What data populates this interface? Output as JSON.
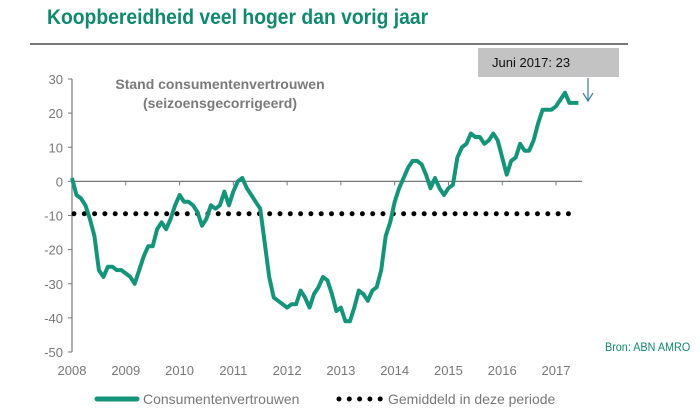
{
  "title": "Koopbereidheid veel hoger dan vorig jaar",
  "source": "Bron: ABN AMRO",
  "colors": {
    "accent": "#0f8a6f",
    "series": "#14957a",
    "average": "#000000",
    "callout": "#c3c3c3"
  },
  "chart_data": {
    "type": "line",
    "subtitle": "Stand consumentenvertrouwen (seizoensgecorrigeerd)",
    "subtitle_lines": [
      "Stand consumentenvertrouwen",
      "(seizoensgecorrigeerd)"
    ],
    "annotation": "Juni 2017: 23",
    "xlim": [
      2008,
      2017.6
    ],
    "ylim": [
      -50,
      30
    ],
    "x_ticks": [
      "2008",
      "2009",
      "2010",
      "2011",
      "2012",
      "2013",
      "2014",
      "2015",
      "2016",
      "2017"
    ],
    "y_ticks": [
      "30",
      "20",
      "10",
      "0",
      "-10",
      "-20",
      "-30",
      "-40",
      "-50"
    ],
    "x_start_month": "2008-01",
    "x_end_month": "2017-06",
    "series": [
      {
        "name": "Consumentenvertrouwen",
        "frequency": "monthly",
        "values": [
          1,
          -4,
          -5,
          -7,
          -11,
          -16,
          -26,
          -28,
          -25,
          -25,
          -26,
          -26,
          -27,
          -28,
          -30,
          -26,
          -22,
          -19,
          -19,
          -14,
          -12,
          -14,
          -11,
          -7,
          -4,
          -6,
          -6,
          -7,
          -9,
          -13,
          -11,
          -7,
          -8,
          -7,
          -3,
          -7,
          -3,
          0,
          1,
          -2,
          -4,
          -6,
          -8,
          -18,
          -28,
          -34,
          -35,
          -36,
          -37,
          -36,
          -36,
          -32,
          -34,
          -37,
          -33,
          -31,
          -28,
          -29,
          -33,
          -38,
          -37,
          -41,
          -41,
          -37,
          -32,
          -33,
          -35,
          -32,
          -31,
          -26,
          -16,
          -12,
          -6,
          -2,
          1,
          4,
          6,
          6,
          5,
          2,
          -2,
          1,
          -2,
          -4,
          -2,
          -1,
          7,
          10,
          11,
          14,
          13,
          13,
          11,
          12,
          14,
          12,
          7,
          2,
          6,
          7,
          11,
          9,
          9,
          12,
          17,
          21,
          21,
          21,
          22,
          24,
          26,
          23,
          23,
          23
        ]
      },
      {
        "name": "Gemiddeld in deze periode",
        "value": -9.5,
        "style": "dotted"
      }
    ]
  }
}
